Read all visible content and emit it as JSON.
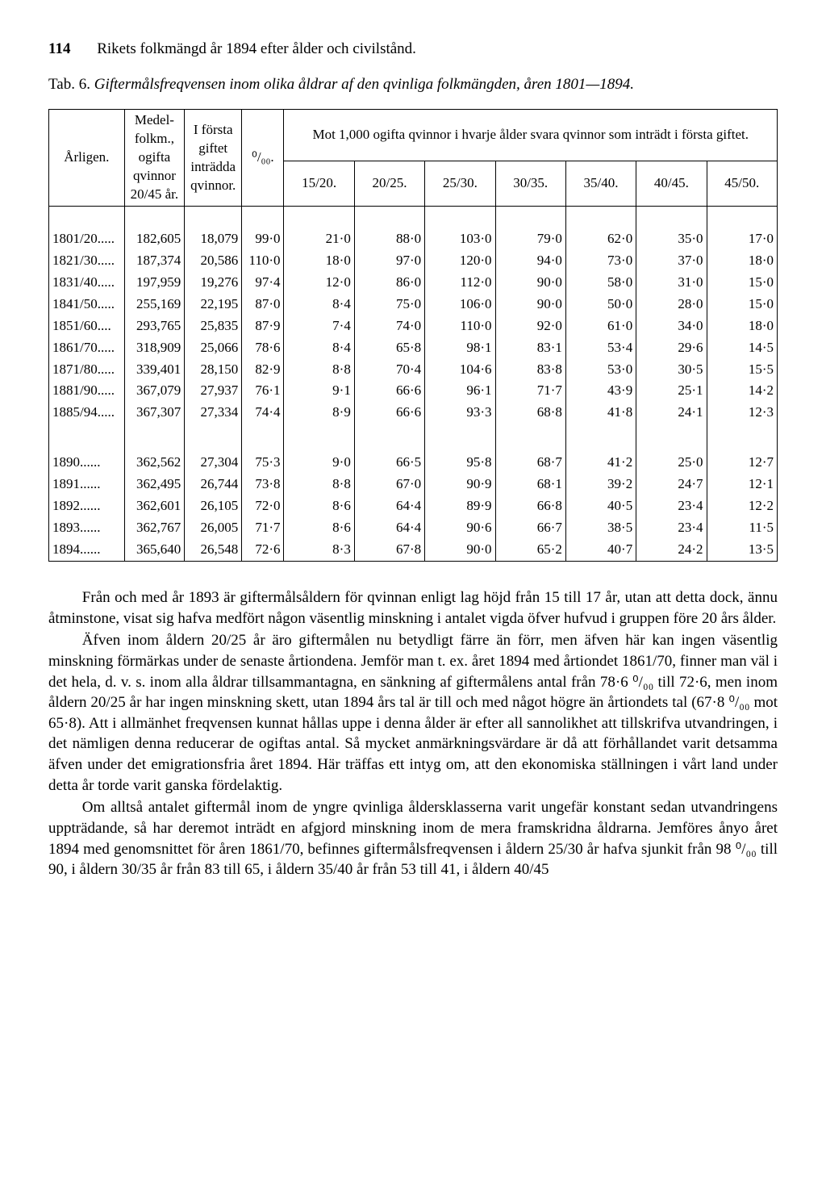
{
  "pageNumber": "114",
  "runningTitle": "Rikets folkmängd år 1894 efter ålder och civilstånd.",
  "tabPrefix": "Tab. 6.",
  "tabCaption": "Giftermålsfreqvensen inom olika åldrar af den qvinliga folkmängden, åren 1801—1894.",
  "table": {
    "col1": "Årligen.",
    "col2a": "Medel-",
    "col2b": "folkm.,",
    "col2c": "ogifta",
    "col2d": "qvinnor",
    "col2e": "20/45 år.",
    "col3a": "I första",
    "col3b": "giftet",
    "col3c": "inträdda",
    "col3d": "qvinnor.",
    "col4": "⁰/₀₀.",
    "groupTop": "Mot 1,000 ogifta qvinnor i hvarje ålder svara qvinnor som inträdt i första giftet.",
    "sub1": "15/20.",
    "sub2": "20/25.",
    "sub3": "25/30.",
    "sub4": "30/35.",
    "sub5": "35/40.",
    "sub6": "40/45.",
    "sub7": "45/50.",
    "rows": [
      [
        "1801/20.....",
        "182,605",
        "18,079",
        "99·0",
        "21·0",
        "88·0",
        "103·0",
        "79·0",
        "62·0",
        "35·0",
        "17·0"
      ],
      [
        "1821/30.....",
        "187,374",
        "20,586",
        "110·0",
        "18·0",
        "97·0",
        "120·0",
        "94·0",
        "73·0",
        "37·0",
        "18·0"
      ],
      [
        "1831/40.....",
        "197,959",
        "19,276",
        "97·4",
        "12·0",
        "86·0",
        "112·0",
        "90·0",
        "58·0",
        "31·0",
        "15·0"
      ],
      [
        "1841/50.....",
        "255,169",
        "22,195",
        "87·0",
        "8·4",
        "75·0",
        "106·0",
        "90·0",
        "50·0",
        "28·0",
        "15·0"
      ],
      [
        "1851/60....",
        "293,765",
        "25,835",
        "87·9",
        "7·4",
        "74·0",
        "110·0",
        "92·0",
        "61·0",
        "34·0",
        "18·0"
      ],
      [
        "1861/70.....",
        "318,909",
        "25,066",
        "78·6",
        "8·4",
        "65·8",
        "98·1",
        "83·1",
        "53·4",
        "29·6",
        "14·5"
      ],
      [
        "1871/80.....",
        "339,401",
        "28,150",
        "82·9",
        "8·8",
        "70·4",
        "104·6",
        "83·8",
        "53·0",
        "30·5",
        "15·5"
      ],
      [
        "1881/90.....",
        "367,079",
        "27,937",
        "76·1",
        "9·1",
        "66·6",
        "96·1",
        "71·7",
        "43·9",
        "25·1",
        "14·2"
      ],
      [
        "1885/94.....",
        "367,307",
        "27,334",
        "74·4",
        "8·9",
        "66·6",
        "93·3",
        "68·8",
        "41·8",
        "24·1",
        "12·3"
      ]
    ],
    "rows2": [
      [
        "1890......",
        "362,562",
        "27,304",
        "75·3",
        "9·0",
        "66·5",
        "95·8",
        "68·7",
        "41·2",
        "25·0",
        "12·7"
      ],
      [
        "1891......",
        "362,495",
        "26,744",
        "73·8",
        "8·8",
        "67·0",
        "90·9",
        "68·1",
        "39·2",
        "24·7",
        "12·1"
      ],
      [
        "1892......",
        "362,601",
        "26,105",
        "72·0",
        "8·6",
        "64·4",
        "89·9",
        "66·8",
        "40·5",
        "23·4",
        "12·2"
      ],
      [
        "1893......",
        "362,767",
        "26,005",
        "71·7",
        "8·6",
        "64·4",
        "90·6",
        "66·7",
        "38·5",
        "23·4",
        "11·5"
      ],
      [
        "1894......",
        "365,640",
        "26,548",
        "72·6",
        "8·3",
        "67·8",
        "90·0",
        "65·2",
        "40·7",
        "24·2",
        "13·5"
      ]
    ]
  },
  "paras": [
    "Från och med år 1893 är giftermålsåldern för qvinnan enligt lag höjd från 15 till 17 år, utan att detta dock, ännu åtminstone, visat sig hafva medfört någon väsentlig minskning i antalet vigda öfver hufvud i gruppen före 20 års ålder.",
    "Äfven inom åldern 20/25 år äro giftermålen nu betydligt färre än förr, men äfven här kan ingen väsentlig minskning förmärkas under de senaste årtiondena. Jemför man t. ex. året 1894 med årtiondet 1861/70, finner man väl i det hela, d. v. s. inom alla åldrar tillsammantagna, en sänkning af giftermålens antal från 78·6 ⁰/₀₀ till 72·6, men inom åldern 20/25 år har ingen minskning skett, utan 1894 års tal är till och med något högre än årtiondets tal (67·8 ⁰/₀₀ mot 65·8). Att i allmänhet freqvensen kunnat hållas uppe i denna ålder är efter all sannolikhet att tillskrifva utvandringen, i det nämligen denna reducerar de ogiftas antal. Så mycket anmärkningsvärdare är då att förhållandet varit detsamma äfven under det emigrationsfria året 1894. Här träffas ett intyg om, att den ekonomiska ställningen i vårt land under detta år torde varit ganska fördelaktig.",
    "Om alltså antalet giftermål inom de yngre qvinliga åldersklasserna varit ungefär konstant sedan utvandringens uppträdande, så har deremot inträdt en afgjord minskning inom de mera framskridna åldrarna. Jemföres ånyo året 1894 med genomsnittet för åren 1861/70, befinnes giftermålsfreqvensen i åldern 25/30 år hafva sjunkit från 98 ⁰/₀₀ till 90, i åldern 30/35 år från 83 till 65, i åldern 35/40 år från 53 till 41, i åldern 40/45"
  ]
}
